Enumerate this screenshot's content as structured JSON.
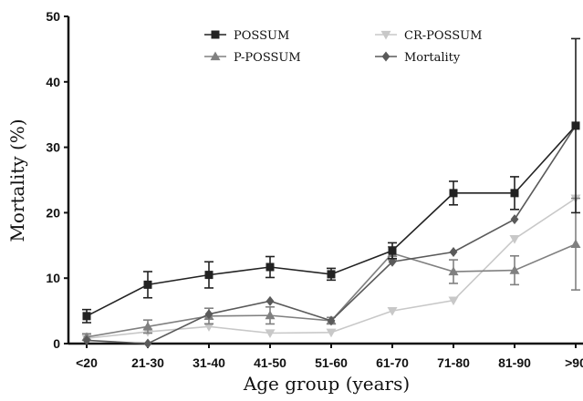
{
  "chart_data": {
    "type": "line",
    "xlabel": "Age group (years)",
    "ylabel": "Mortality (%)",
    "categories": [
      "<20",
      "21-30",
      "31-40",
      "41-50",
      "51-60",
      "61-70",
      "71-80",
      "81-90",
      ">90"
    ],
    "ylim": [
      0,
      50
    ],
    "yticks": [
      "0",
      "10",
      "20",
      "30",
      "40",
      "50"
    ],
    "grid": false,
    "legend_position": "top",
    "series": [
      {
        "name": "POSSUM",
        "marker": "square",
        "color": "#222222",
        "values": [
          4.2,
          9,
          10.5,
          11.7,
          10.6,
          14.2,
          23,
          23,
          33.3
        ],
        "errors": [
          1.0,
          2.0,
          2.0,
          1.6,
          0.9,
          1.2,
          1.8,
          2.5,
          13.3
        ]
      },
      {
        "name": "CR-POSSUM",
        "marker": "triangle-down",
        "color": "#c8c8c8",
        "values": [
          0.8,
          1.8,
          2.6,
          1.6,
          1.7,
          5,
          6.6,
          16,
          22.2
        ],
        "errors": [
          0,
          0,
          0,
          0,
          0,
          0,
          0,
          0,
          0
        ]
      },
      {
        "name": "P-POSSUM",
        "marker": "triangle-up",
        "color": "#808080",
        "values": [
          1,
          2.6,
          4.2,
          4.3,
          3.5,
          13.8,
          11,
          11.2,
          15.2
        ],
        "errors": [
          0.5,
          1.0,
          1.2,
          1.3,
          0.5,
          1.0,
          1.8,
          2.2,
          7.0
        ]
      },
      {
        "name": "Mortality",
        "marker": "diamond",
        "color": "#5a5a5a",
        "values": [
          0.5,
          0,
          4.5,
          6.5,
          3.5,
          12.5,
          14,
          19,
          33.3
        ],
        "errors": [
          0,
          0,
          0,
          0,
          0,
          0,
          0,
          0,
          0
        ]
      }
    ]
  }
}
